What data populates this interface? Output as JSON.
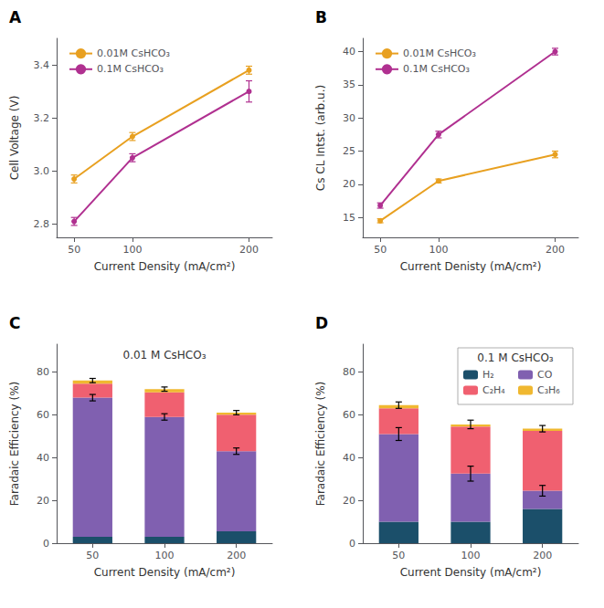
{
  "chart_data": [
    {
      "type": "line",
      "annotations": [
        "A"
      ],
      "x": [
        50,
        100,
        200
      ],
      "xlabel": "Current Density (mA/cm²)",
      "ylabel": "Cell Voltage (V)",
      "xlim": [
        35,
        220
      ],
      "xticks": [
        50,
        100,
        200
      ],
      "ylim": [
        2.75,
        3.5
      ],
      "yticks": [
        2.8,
        {
          "value": 3.0,
          "label": "3.0"
        },
        3.2,
        3.4
      ],
      "grid": false,
      "legend": "upper left",
      "marker": "circle",
      "series": [
        {
          "name": "0.01M CsHCO₃",
          "color": "#E8A020",
          "values": [
            2.97,
            3.13,
            3.38
          ],
          "yerr": [
            0.015,
            0.015,
            0.015
          ]
        },
        {
          "name": "0.1M CsHCO₃",
          "color": "#B03090",
          "values": [
            2.81,
            3.05,
            3.3
          ],
          "yerr": [
            0.015,
            0.015,
            0.04
          ]
        }
      ]
    },
    {
      "type": "line",
      "annotations": [
        "B"
      ],
      "x": [
        50,
        100,
        200
      ],
      "xlabel": "Current Denisty (mA/cm²)",
      "ylabel": "Cs CL Intst. (arb.u.)",
      "xlim": [
        35,
        220
      ],
      "xticks": [
        50,
        100,
        200
      ],
      "ylim": [
        12,
        42
      ],
      "yticks": [
        15,
        20,
        25,
        30,
        35,
        40
      ],
      "grid": false,
      "legend": "upper left",
      "marker": "circle",
      "series": [
        {
          "name": "0.01M CsHCO₃",
          "color": "#E8A020",
          "values": [
            14.5,
            20.5,
            24.5
          ],
          "yerr": [
            0.3,
            0.3,
            0.5
          ]
        },
        {
          "name": "0.1M CsHCO₃",
          "color": "#B03090",
          "values": [
            16.8,
            27.5,
            40.0
          ],
          "yerr": [
            0.4,
            0.5,
            0.5
          ]
        }
      ]
    },
    {
      "type": "bar",
      "stacked": true,
      "annotations": [
        "C"
      ],
      "title": "0.01 M CsHCO₃",
      "categories": [
        "50",
        "100",
        "200"
      ],
      "xlabel": "Current Density (mA/cm²)",
      "ylabel": "Faradaic Efficiency (%)",
      "ylim": [
        0,
        93
      ],
      "yticks": [
        0,
        20,
        40,
        60,
        80
      ],
      "grid": false,
      "series": [
        {
          "name": "H₂",
          "color": "#1B4F6A",
          "values": [
            3.0,
            3.0,
            5.5
          ]
        },
        {
          "name": "CO",
          "color": "#8060B0",
          "values": [
            65.0,
            56.0,
            37.5
          ],
          "yerr": [
            1.5,
            1.5,
            1.5
          ]
        },
        {
          "name": "C₂H₄",
          "color": "#F06070",
          "values": [
            6.5,
            11.5,
            17.0
          ]
        },
        {
          "name": "C₃H₆",
          "color": "#F0B830",
          "values": [
            1.5,
            1.5,
            1.0
          ],
          "yerr": [
            1.0,
            1.0,
            1.0
          ]
        }
      ]
    },
    {
      "type": "bar",
      "stacked": true,
      "annotations": [
        "D"
      ],
      "title": "0.1 M CsHCO₃",
      "categories": [
        "50",
        "100",
        "200"
      ],
      "xlabel": "Current Density (mA/cm²)",
      "ylabel": "Faradaic Efficiency (%)",
      "ylim": [
        0,
        93
      ],
      "yticks": [
        0,
        20,
        40,
        60,
        80
      ],
      "grid": false,
      "legend": "upper right",
      "series": [
        {
          "name": "H₂",
          "color": "#1B4F6A",
          "values": [
            10.0,
            10.0,
            16.0
          ]
        },
        {
          "name": "CO",
          "color": "#8060B0",
          "values": [
            41.0,
            22.5,
            8.5
          ],
          "yerr": [
            3.0,
            3.5,
            2.5
          ]
        },
        {
          "name": "C₂H₄",
          "color": "#F06070",
          "values": [
            12.0,
            22.0,
            28.0
          ]
        },
        {
          "name": "C₃H₆",
          "color": "#F0B830",
          "values": [
            1.5,
            1.0,
            1.0
          ],
          "yerr": [
            1.5,
            2.0,
            1.5
          ]
        }
      ]
    }
  ]
}
